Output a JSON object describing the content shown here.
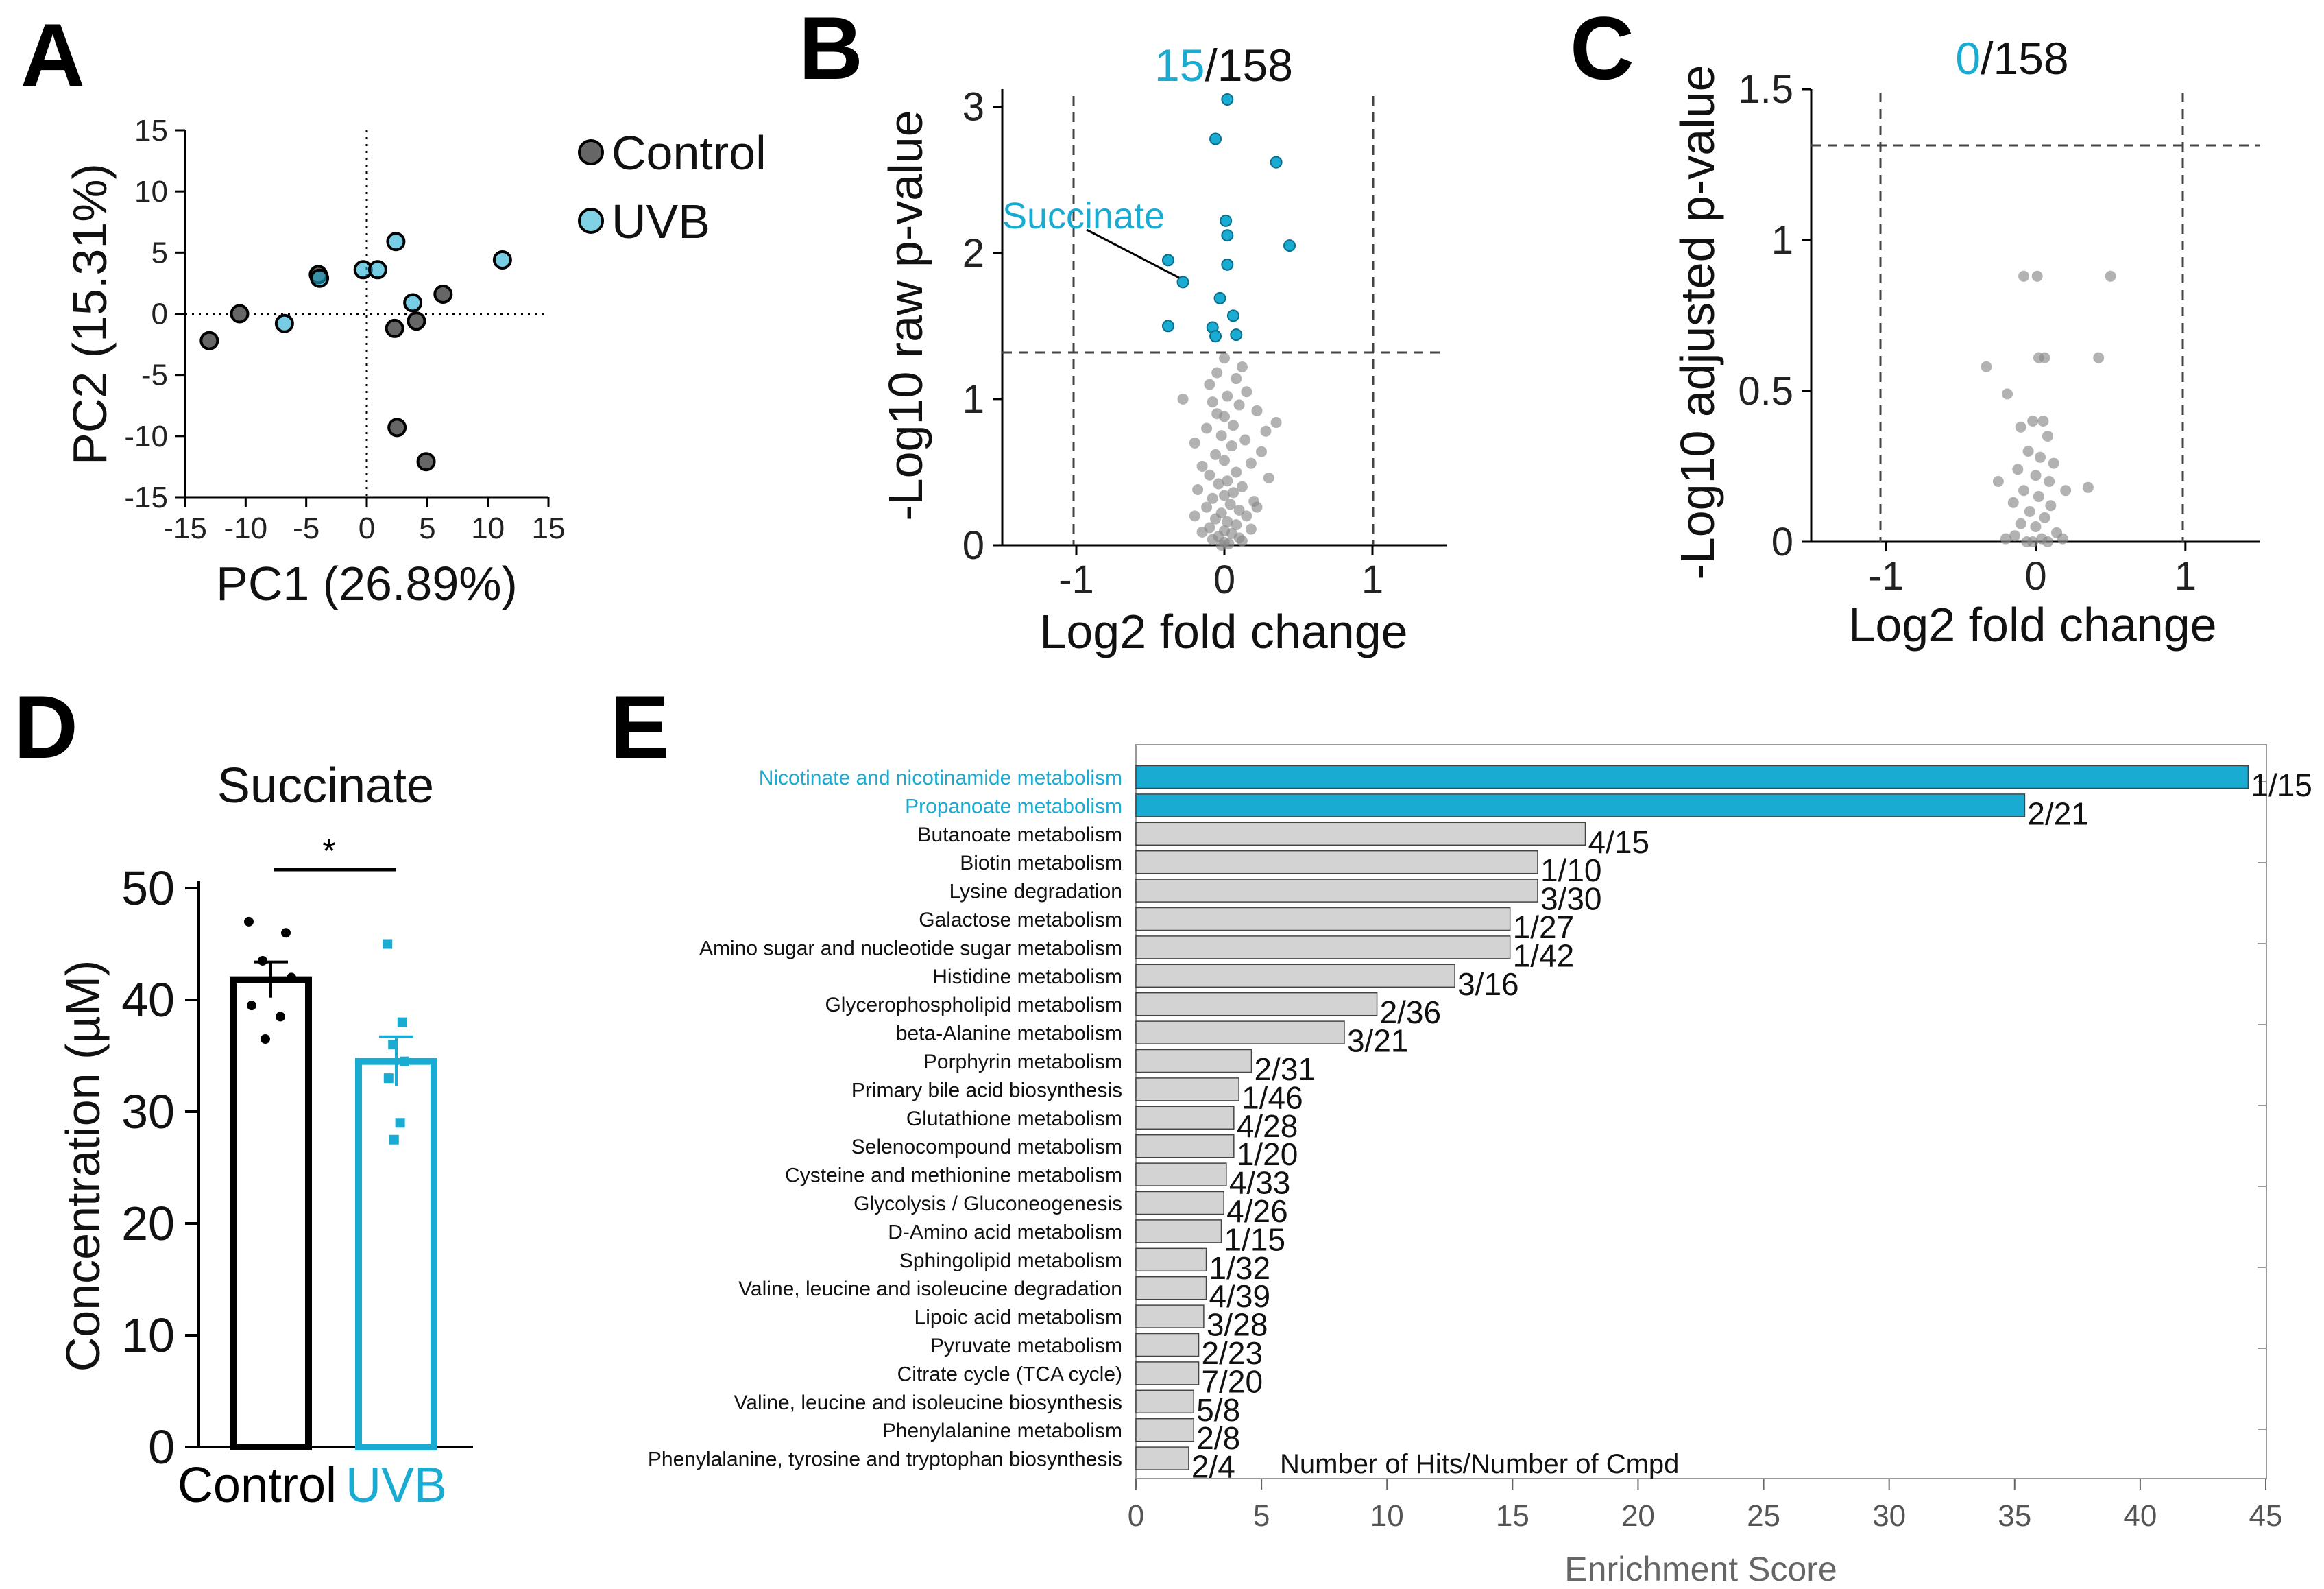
{
  "colors": {
    "control": "#666666",
    "uvb": "#1aabd2",
    "bar_gray": "#d3d3d3",
    "highlight": "#1aabd2"
  },
  "chart_data": [
    {
      "panel": "A",
      "type": "scatter",
      "xlabel": "PC1 (26.89%)",
      "ylabel": "PC2 (15.31%)",
      "xlim": [
        -15,
        15
      ],
      "ylim": [
        -15,
        15
      ],
      "xticks": [
        -15,
        -10,
        -5,
        0,
        5,
        10,
        15
      ],
      "yticks": [
        -15,
        -10,
        -5,
        0,
        5,
        10,
        15
      ],
      "legend": [
        "Control",
        "UVB"
      ],
      "series": [
        {
          "name": "Control",
          "points": [
            [
              -13,
              -2.2
            ],
            [
              -10.5,
              0
            ],
            [
              -4,
              3.2
            ],
            [
              2.3,
              -1.2
            ],
            [
              4.1,
              -0.6
            ],
            [
              6.3,
              1.6
            ],
            [
              2.5,
              -9.3
            ],
            [
              4.9,
              -12.1
            ]
          ]
        },
        {
          "name": "UVB",
          "points": [
            [
              -6.8,
              -0.8
            ],
            [
              -3.9,
              2.9
            ],
            [
              -0.3,
              3.6
            ],
            [
              0.9,
              3.6
            ],
            [
              2.4,
              5.9
            ],
            [
              3.8,
              0.9
            ],
            [
              11.2,
              4.4
            ]
          ]
        }
      ]
    },
    {
      "panel": "B",
      "type": "scatter",
      "title_count": "15",
      "title_total": "/158",
      "xlabel": "Log2 fold change",
      "ylabel": "-Log10 raw p-value",
      "xlim": [
        -1.5,
        1.5
      ],
      "ylim": [
        0,
        3.05
      ],
      "xticks": [
        -1,
        0,
        1
      ],
      "yticks": [
        0,
        1,
        2,
        3
      ],
      "annotation": {
        "text": "Succinate",
        "x": -0.28,
        "y": 1.8
      },
      "significant": [
        [
          0.02,
          3.05
        ],
        [
          -0.06,
          2.78
        ],
        [
          0.35,
          2.62
        ],
        [
          0.01,
          2.22
        ],
        [
          0.02,
          2.12
        ],
        [
          0.44,
          2.05
        ],
        [
          -0.38,
          1.95
        ],
        [
          0.02,
          1.92
        ],
        [
          -0.28,
          1.8
        ],
        [
          -0.03,
          1.69
        ],
        [
          0.06,
          1.57
        ],
        [
          -0.38,
          1.5
        ],
        [
          -0.08,
          1.49
        ],
        [
          -0.06,
          1.43
        ],
        [
          0.08,
          1.44
        ]
      ],
      "nonsignificant": [
        [
          0.0,
          1.28
        ],
        [
          0.12,
          1.22
        ],
        [
          -0.05,
          1.18
        ],
        [
          0.08,
          1.14
        ],
        [
          -0.1,
          1.1
        ],
        [
          0.15,
          1.05
        ],
        [
          -0.28,
          1.0
        ],
        [
          0.02,
          1.02
        ],
        [
          -0.08,
          0.98
        ],
        [
          0.1,
          0.96
        ],
        [
          0.22,
          0.92
        ],
        [
          -0.05,
          0.9
        ],
        [
          0.0,
          0.88
        ],
        [
          0.35,
          0.84
        ],
        [
          0.06,
          0.82
        ],
        [
          -0.12,
          0.8
        ],
        [
          0.28,
          0.78
        ],
        [
          -0.02,
          0.75
        ],
        [
          0.14,
          0.72
        ],
        [
          -0.2,
          0.7
        ],
        [
          0.05,
          0.68
        ],
        [
          0.25,
          0.64
        ],
        [
          -0.06,
          0.62
        ],
        [
          0.0,
          0.58
        ],
        [
          0.18,
          0.56
        ],
        [
          -0.15,
          0.54
        ],
        [
          0.08,
          0.5
        ],
        [
          -0.1,
          0.48
        ],
        [
          0.3,
          0.46
        ],
        [
          0.02,
          0.44
        ],
        [
          -0.04,
          0.42
        ],
        [
          0.12,
          0.4
        ],
        [
          -0.18,
          0.38
        ],
        [
          0.06,
          0.36
        ],
        [
          0.0,
          0.34
        ],
        [
          -0.08,
          0.32
        ],
        [
          0.2,
          0.3
        ],
        [
          0.04,
          0.28
        ],
        [
          -0.12,
          0.26
        ],
        [
          0.1,
          0.24
        ],
        [
          -0.02,
          0.22
        ],
        [
          0.15,
          0.2
        ],
        [
          -0.06,
          0.18
        ],
        [
          0.02,
          0.16
        ],
        [
          0.08,
          0.14
        ],
        [
          -0.1,
          0.12
        ],
        [
          0.0,
          0.1
        ],
        [
          0.05,
          0.08
        ],
        [
          -0.04,
          0.06
        ],
        [
          0.1,
          0.05
        ],
        [
          -0.08,
          0.04
        ],
        [
          0.0,
          0.02
        ],
        [
          0.03,
          0.01
        ],
        [
          -0.02,
          0.0
        ],
        [
          0.12,
          0.03
        ],
        [
          -0.15,
          0.09
        ],
        [
          0.18,
          0.11
        ],
        [
          -0.2,
          0.2
        ],
        [
          0.22,
          0.26
        ]
      ]
    },
    {
      "panel": "C",
      "type": "scatter",
      "title_count": "0",
      "title_total": "/158",
      "xlabel": "Log2 fold change",
      "ylabel": "-Log10 adjusted p-value",
      "xlim": [
        -1.5,
        1.5
      ],
      "ylim": [
        0,
        1.5
      ],
      "xticks": [
        -1,
        0,
        1
      ],
      "yticks": [
        0,
        0.5,
        1,
        1.5
      ],
      "nonsignificant": [
        [
          -0.08,
          0.88
        ],
        [
          0.01,
          0.88
        ],
        [
          0.5,
          0.88
        ],
        [
          -0.33,
          0.58
        ],
        [
          0.02,
          0.61
        ],
        [
          0.06,
          0.61
        ],
        [
          0.42,
          0.61
        ],
        [
          -0.19,
          0.49
        ],
        [
          -0.02,
          0.4
        ],
        [
          0.05,
          0.4
        ],
        [
          -0.1,
          0.38
        ],
        [
          0.08,
          0.35
        ],
        [
          -0.05,
          0.3
        ],
        [
          0.03,
          0.28
        ],
        [
          0.12,
          0.26
        ],
        [
          -0.12,
          0.24
        ],
        [
          0.0,
          0.22
        ],
        [
          0.09,
          0.2
        ],
        [
          -0.25,
          0.2
        ],
        [
          0.35,
          0.18
        ],
        [
          -0.08,
          0.17
        ],
        [
          0.2,
          0.17
        ],
        [
          0.02,
          0.15
        ],
        [
          -0.15,
          0.13
        ],
        [
          0.1,
          0.12
        ],
        [
          -0.04,
          0.1
        ],
        [
          0.06,
          0.08
        ],
        [
          -0.1,
          0.06
        ],
        [
          0.0,
          0.05
        ],
        [
          0.14,
          0.03
        ],
        [
          -0.14,
          0.02
        ],
        [
          0.04,
          0.01
        ],
        [
          -0.06,
          0.0
        ],
        [
          0.08,
          0.0
        ],
        [
          -0.02,
          0.0
        ],
        [
          0.18,
          0.01
        ],
        [
          -0.2,
          0.01
        ]
      ]
    },
    {
      "panel": "D",
      "type": "bar",
      "title": "Succinate",
      "categories": [
        "Control",
        "UVB"
      ],
      "values": [
        41.8,
        34.5
      ],
      "sem": [
        1.6,
        2.2
      ],
      "points": [
        [
          47.0,
          46.0,
          43.5,
          42.0,
          39.5,
          38.5,
          36.5
        ],
        [
          45.0,
          38.0,
          36.0,
          34.5,
          33.0,
          29.0,
          27.5
        ]
      ],
      "ylabel": "Concentration (µM)",
      "ylim": [
        0,
        50
      ],
      "yticks": [
        0,
        10,
        20,
        30,
        40,
        50
      ],
      "significance": "*"
    },
    {
      "panel": "E",
      "type": "bar",
      "orientation": "horizontal",
      "xlabel": "Enrichment Score",
      "xlim": [
        0,
        45
      ],
      "xticks": [
        0,
        5,
        10,
        15,
        20,
        25,
        30,
        35,
        40,
        45
      ],
      "legend_note": "Number of Hits/Number of Cmpd",
      "categories": [
        "Nicotinate and nicotinamide metabolism",
        "Propanoate metabolism",
        "Butanoate metabolism",
        "Biotin metabolism",
        "Lysine degradation",
        "Galactose metabolism",
        "Amino sugar and nucleotide sugar metabolism",
        "Histidine metabolism",
        "Glycerophospholipid metabolism",
        "beta-Alanine metabolism",
        "Porphyrin metabolism",
        "Primary bile acid biosynthesis",
        "Glutathione metabolism",
        "Selenocompound metabolism",
        "Cysteine and methionine metabolism",
        "Glycolysis / Gluconeogenesis",
        "D-Amino acid metabolism",
        "Sphingolipid metabolism",
        "Valine, leucine and isoleucine degradation",
        "Lipoic acid metabolism",
        "Pyruvate metabolism",
        "Citrate cycle (TCA cycle)",
        "Valine, leucine and isoleucine biosynthesis",
        "Phenylalanine metabolism",
        "Phenylalanine, tyrosine and tryptophan biosynthesis"
      ],
      "values": [
        44.3,
        35.4,
        17.9,
        16.0,
        16.0,
        14.9,
        14.9,
        12.7,
        9.6,
        8.3,
        4.6,
        4.1,
        3.9,
        3.9,
        3.6,
        3.5,
        3.4,
        2.8,
        2.8,
        2.7,
        2.5,
        2.5,
        2.3,
        2.3,
        2.1
      ],
      "hits": [
        "1/15",
        "2/21",
        "4/15",
        "1/10",
        "3/30",
        "1/27",
        "1/42",
        "3/16",
        "2/36",
        "3/21",
        "2/31",
        "1/46",
        "4/28",
        "1/20",
        "4/33",
        "4/26",
        "1/15",
        "1/32",
        "4/39",
        "3/28",
        "2/23",
        "7/20",
        "5/8",
        "2/8",
        "2/4"
      ],
      "highlighted": [
        0,
        1
      ]
    }
  ]
}
